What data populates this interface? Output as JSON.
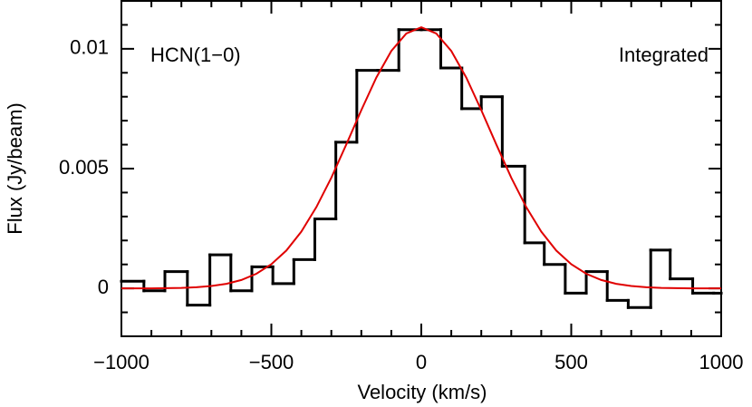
{
  "chart_data": {
    "type": "histogram",
    "xlabel": "Velocity (km/s)",
    "ylabel": "Flux (Jy/beam)",
    "annotations": [
      "HCN(1−0)",
      "Integrated"
    ],
    "xlim": [
      -1000,
      1000
    ],
    "ylim": [
      -0.002,
      0.012
    ],
    "xticks": [
      {
        "value": -1000,
        "label": "−1000"
      },
      {
        "value": -500,
        "label": "−500"
      },
      0,
      500,
      1000
    ],
    "yticks": [
      0,
      0.005,
      0.01
    ],
    "xminorticks": [
      -900,
      -800,
      -700,
      -600,
      -400,
      -300,
      -200,
      -100,
      100,
      200,
      300,
      400,
      600,
      700,
      800,
      900
    ],
    "yminorticks": [
      -0.001,
      0.001,
      0.002,
      0.003,
      0.004,
      0.006,
      0.007,
      0.008,
      0.009,
      0.011
    ],
    "color": "#000000",
    "bins": [
      -1000,
      -925,
      -855,
      -780,
      -705,
      -635,
      -565,
      -495,
      -425,
      -355,
      -285,
      -215,
      -145,
      -75,
      0,
      65,
      135,
      200,
      270,
      345,
      410,
      480,
      550,
      620,
      690,
      765,
      830,
      905,
      975,
      1000
    ],
    "values": [
      0.0003,
      -0.0001,
      0.0007,
      -0.0007,
      0.0014,
      -0.0001,
      0.0009,
      0.0002,
      0.0012,
      0.0029,
      0.0061,
      0.0091,
      0.0091,
      0.0108,
      0.0108,
      0.0092,
      0.0075,
      0.008,
      0.0051,
      0.0019,
      0.001,
      -0.0002,
      0.0007,
      -0.0005,
      -0.0008,
      0.0016,
      0.0004,
      -0.0002,
      -0.0002
    ],
    "fit": {
      "color": "#e00000",
      "x": [
        -1000,
        -950,
        -900,
        -850,
        -800,
        -750,
        -700,
        -650,
        -600,
        -550,
        -500,
        -450,
        -400,
        -350,
        -300,
        -250,
        -200,
        -150,
        -100,
        -50,
        0,
        50,
        100,
        150,
        200,
        250,
        300,
        350,
        400,
        450,
        500,
        550,
        600,
        650,
        700,
        750,
        800,
        850,
        900,
        950,
        1000
      ],
      "values": [
        0,
        0,
        0,
        1e-05,
        2e-05,
        5e-05,
        0.0001,
        0.00019,
        0.00035,
        0.00061,
        0.00101,
        0.00158,
        0.00237,
        0.00339,
        0.00462,
        0.00601,
        0.00744,
        0.0088,
        0.00991,
        0.01064,
        0.0109,
        0.01064,
        0.00991,
        0.0088,
        0.00744,
        0.00601,
        0.00462,
        0.00339,
        0.00237,
        0.00158,
        0.00101,
        0.00061,
        0.00035,
        0.00019,
        0.0001,
        5e-05,
        2e-05,
        1e-05,
        0,
        0,
        0
      ]
    }
  }
}
